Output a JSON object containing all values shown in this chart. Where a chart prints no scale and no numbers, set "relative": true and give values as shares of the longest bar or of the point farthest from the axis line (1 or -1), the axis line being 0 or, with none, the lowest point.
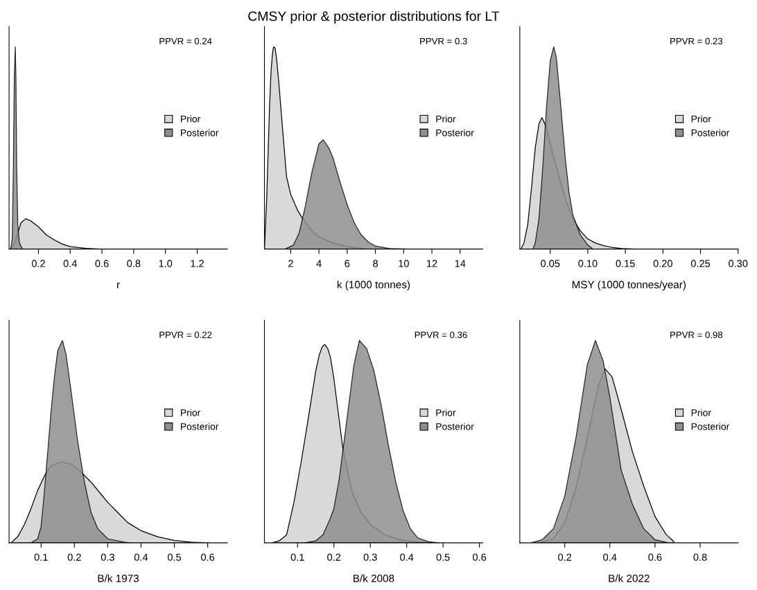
{
  "chart_data": [
    {
      "type": "area",
      "xlabel": "r",
      "relative": true,
      "xlim": [
        0.015,
        1.39
      ],
      "xticks": [
        0.2,
        0.4,
        0.6,
        0.8,
        {
          "value": 1.0,
          "label": "1.0"
        },
        1.2
      ],
      "annotations": [
        "PPVR = 0.24"
      ],
      "legend": "right",
      "grid": false,
      "series": [
        {
          "name": "Prior",
          "color": "#d9d9d9",
          "x": [
            0.025,
            0.05,
            0.07,
            0.09,
            0.12,
            0.15,
            0.2,
            0.25,
            0.3,
            0.35,
            0.4,
            0.5,
            0.58
          ],
          "values": [
            0,
            0.03,
            0.08,
            0.13,
            0.15,
            0.14,
            0.11,
            0.07,
            0.045,
            0.025,
            0.012,
            0.004,
            0
          ]
        },
        {
          "name": "Posterior",
          "color": "#8f8f8f",
          "x": [
            0.025,
            0.035,
            0.042,
            0.048,
            0.054,
            0.058,
            0.063,
            0.07,
            0.08,
            0.1
          ],
          "values": [
            0,
            0.05,
            0.4,
            0.85,
            1,
            0.85,
            0.4,
            0.12,
            0.03,
            0
          ]
        }
      ]
    },
    {
      "type": "area",
      "title": "CMSY prior & posterior distributions for LT",
      "xlabel": "k (1000 tonnes)",
      "relative": true,
      "xlim": [
        0.14,
        15.6
      ],
      "xticks": [
        2,
        4,
        6,
        8,
        10,
        12,
        14
      ],
      "annotations": [
        "PPVR = 0.3"
      ],
      "legend": "right",
      "grid": false,
      "series": [
        {
          "name": "Prior",
          "color": "#d9d9d9",
          "x": [
            0.14,
            0.3,
            0.5,
            0.6,
            0.7,
            0.77,
            0.83,
            0.9,
            1.0,
            1.15,
            1.3,
            1.7,
            2,
            2.5,
            2.85,
            3.5,
            4,
            5,
            6,
            7.4
          ],
          "values": [
            0,
            0.25,
            0.7,
            0.87,
            0.96,
            0.995,
            1,
            0.99,
            0.94,
            0.83,
            0.7,
            0.36,
            0.27,
            0.19,
            0.15,
            0.09,
            0.06,
            0.03,
            0.012,
            0
          ]
        },
        {
          "name": "Posterior",
          "color": "#8f8f8f",
          "x": [
            1.6,
            2.2,
            2.6,
            3,
            3.5,
            4,
            4.3,
            4.7,
            5,
            5.5,
            6,
            6.5,
            7,
            7.5,
            8,
            9,
            10.4
          ],
          "values": [
            0,
            0.02,
            0.08,
            0.2,
            0.38,
            0.52,
            0.54,
            0.5,
            0.45,
            0.33,
            0.22,
            0.13,
            0.07,
            0.035,
            0.015,
            0.003,
            0
          ]
        }
      ]
    },
    {
      "type": "area",
      "xlabel": "MSY (1000 tonnes/year)",
      "relative": true,
      "xlim": [
        0.0095,
        0.3
      ],
      "xticks": [
        {
          "value": 0.05,
          "label": "0.05"
        },
        {
          "value": 0.1,
          "label": "0.10"
        },
        {
          "value": 0.15,
          "label": "0.15"
        },
        {
          "value": 0.2,
          "label": "0.20"
        },
        {
          "value": 0.25,
          "label": "0.25"
        },
        {
          "value": 0.3,
          "label": "0.30"
        }
      ],
      "annotations": [
        "PPVR = 0.23"
      ],
      "legend": "right",
      "grid": false,
      "series": [
        {
          "name": "Prior",
          "color": "#d9d9d9",
          "x": [
            0.011,
            0.015,
            0.02,
            0.025,
            0.03,
            0.035,
            0.039,
            0.045,
            0.05,
            0.06,
            0.07,
            0.08,
            0.09,
            0.1,
            0.11,
            0.12,
            0.13,
            0.145,
            0.163
          ],
          "values": [
            0,
            0.03,
            0.12,
            0.3,
            0.5,
            0.62,
            0.65,
            0.6,
            0.52,
            0.38,
            0.25,
            0.15,
            0.09,
            0.05,
            0.03,
            0.018,
            0.01,
            0.003,
            0
          ]
        },
        {
          "name": "Posterior",
          "color": "#8f8f8f",
          "x": [
            0.027,
            0.03,
            0.035,
            0.04,
            0.045,
            0.05,
            0.0546,
            0.058,
            0.063,
            0.07,
            0.075,
            0.08,
            0.09,
            0.1,
            0.107
          ],
          "values": [
            0,
            0.03,
            0.15,
            0.4,
            0.7,
            0.93,
            1,
            0.95,
            0.75,
            0.45,
            0.28,
            0.17,
            0.07,
            0.02,
            0
          ]
        }
      ]
    },
    {
      "type": "area",
      "xlabel": "B/k 1973",
      "relative": true,
      "xlim": [
        0.004,
        0.659
      ],
      "xticks": [
        0.1,
        0.2,
        0.3,
        0.4,
        0.5,
        0.6
      ],
      "annotations": [
        "PPVR = 0.22"
      ],
      "legend": "right",
      "grid": false,
      "series": [
        {
          "name": "Prior",
          "color": "#d9d9d9",
          "x": [
            0.01,
            0.03,
            0.05,
            0.07,
            0.09,
            0.11,
            0.13,
            0.16,
            0.19,
            0.22,
            0.25,
            0.28,
            0.3,
            0.33,
            0.36,
            0.4,
            0.45,
            0.5,
            0.55,
            0.6
          ],
          "values": [
            0,
            0.03,
            0.09,
            0.17,
            0.26,
            0.33,
            0.38,
            0.4,
            0.39,
            0.35,
            0.3,
            0.24,
            0.2,
            0.15,
            0.1,
            0.06,
            0.03,
            0.012,
            0.003,
            0
          ]
        },
        {
          "name": "Posterior",
          "color": "#8f8f8f",
          "x": [
            0.07,
            0.09,
            0.1,
            0.11,
            0.12,
            0.13,
            0.14,
            0.15,
            0.164,
            0.175,
            0.19,
            0.21,
            0.23,
            0.25,
            0.27,
            0.3,
            0.35,
            0.37
          ],
          "values": [
            0,
            0.02,
            0.08,
            0.25,
            0.45,
            0.65,
            0.82,
            0.95,
            1,
            0.93,
            0.75,
            0.5,
            0.3,
            0.15,
            0.07,
            0.02,
            0.003,
            0
          ]
        }
      ]
    },
    {
      "type": "area",
      "xlabel": "B/k 2008",
      "relative": true,
      "xlim": [
        0.009,
        0.609
      ],
      "xticks": [
        0.1,
        0.2,
        0.3,
        0.4,
        0.5,
        0.6
      ],
      "annotations": [
        "PPVR = 0.36"
      ],
      "legend": "right",
      "grid": false,
      "series": [
        {
          "name": "Prior",
          "color": "#d9d9d9",
          "x": [
            0.03,
            0.05,
            0.07,
            0.09,
            0.11,
            0.13,
            0.15,
            0.16,
            0.168,
            0.175,
            0.183,
            0.19,
            0.2,
            0.225,
            0.25,
            0.275,
            0.3,
            0.34,
            0.38,
            0.43,
            0.49
          ],
          "values": [
            0,
            0.01,
            0.04,
            0.2,
            0.4,
            0.62,
            0.85,
            0.93,
            0.97,
            0.98,
            0.96,
            0.92,
            0.81,
            0.46,
            0.25,
            0.15,
            0.09,
            0.04,
            0.015,
            0.004,
            0
          ]
        },
        {
          "name": "Posterior",
          "color": "#8f8f8f",
          "x": [
            0.12,
            0.15,
            0.17,
            0.19,
            0.2,
            0.215,
            0.225,
            0.24,
            0.255,
            0.27,
            0.29,
            0.31,
            0.33,
            0.35,
            0.37,
            0.39,
            0.41,
            0.43,
            0.46,
            0.49
          ],
          "values": [
            0,
            0.01,
            0.04,
            0.12,
            0.17,
            0.32,
            0.46,
            0.67,
            0.88,
            1,
            0.96,
            0.85,
            0.68,
            0.48,
            0.3,
            0.16,
            0.07,
            0.025,
            0.005,
            0
          ]
        }
      ]
    },
    {
      "type": "area",
      "xlabel": "B/k 2022",
      "relative": true,
      "xlim": [
        0.001,
        0.968
      ],
      "xticks": [
        0.2,
        0.4,
        0.6,
        0.8
      ],
      "annotations": [
        "PPVR = 0.98"
      ],
      "legend": "right",
      "grid": false,
      "series": [
        {
          "name": "Prior",
          "color": "#d9d9d9",
          "x": [
            0.09,
            0.15,
            0.2,
            0.25,
            0.3,
            0.35,
            0.379,
            0.41,
            0.45,
            0.5,
            0.55,
            0.6,
            0.65,
            0.68,
            0.685
          ],
          "values": [
            0,
            0.02,
            0.1,
            0.27,
            0.52,
            0.78,
            0.86,
            0.82,
            0.66,
            0.45,
            0.28,
            0.13,
            0.04,
            0.01,
            0
          ]
        },
        {
          "name": "Posterior",
          "color": "#8f8f8f",
          "x": [
            0.05,
            0.1,
            0.15,
            0.2,
            0.25,
            0.3,
            0.336,
            0.37,
            0.4,
            0.45,
            0.5,
            0.55,
            0.6,
            0.66
          ],
          "values": [
            0,
            0.015,
            0.07,
            0.23,
            0.52,
            0.88,
            1,
            0.9,
            0.72,
            0.36,
            0.19,
            0.07,
            0.015,
            0
          ]
        }
      ]
    }
  ]
}
